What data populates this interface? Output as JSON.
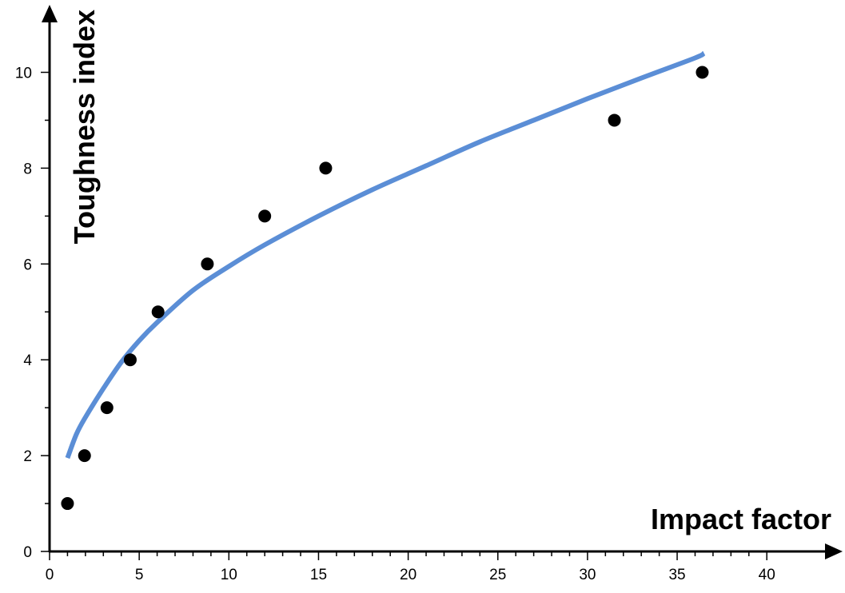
{
  "chart_data": {
    "type": "scatter",
    "title": "",
    "xlabel": "Impact factor",
    "ylabel": "Toughness index",
    "xlim": [
      0,
      43
    ],
    "ylim": [
      0,
      11
    ],
    "x_ticks": [
      0,
      5,
      10,
      15,
      20,
      25,
      30,
      35,
      40
    ],
    "x_tick_labels": [
      "0",
      "5",
      "10",
      "15",
      "20",
      "25",
      "30",
      "35",
      "40"
    ],
    "x_minor_step": 1,
    "y_ticks": [
      0,
      2,
      4,
      6,
      8,
      10
    ],
    "y_tick_labels": [
      "0",
      "2",
      "4",
      "6",
      "8",
      "10"
    ],
    "y_minor_step": 1,
    "grid": false,
    "legend": "none",
    "points": {
      "x": [
        1.0,
        1.95,
        3.2,
        4.5,
        6.05,
        8.8,
        12.0,
        15.4,
        31.5,
        36.4
      ],
      "y": [
        1,
        2,
        3,
        4,
        5,
        6,
        7,
        8,
        9,
        10
      ],
      "color": "#000000"
    },
    "fit_curve": {
      "x": [
        1.0,
        1.5,
        2.0,
        3.0,
        4.0,
        5.0,
        6.0,
        8.0,
        10.0,
        12.0,
        15.0,
        18.0,
        21.0,
        24.0,
        27.0,
        30.0,
        33.0,
        36.0,
        36.5
      ],
      "y": [
        1.95,
        2.45,
        2.8,
        3.4,
        3.95,
        4.4,
        4.78,
        5.45,
        5.95,
        6.4,
        7.0,
        7.55,
        8.05,
        8.55,
        9.0,
        9.45,
        9.88,
        10.3,
        10.4
      ],
      "color": "#5B8ED6"
    }
  }
}
